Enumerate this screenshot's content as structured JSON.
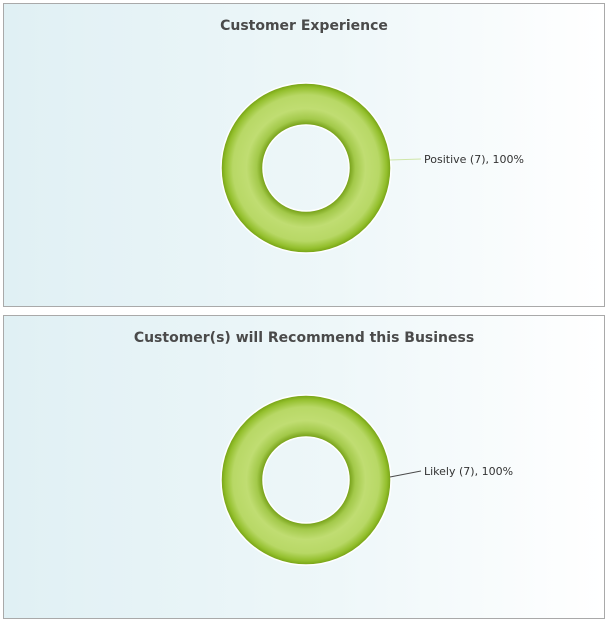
{
  "chart_data": [
    {
      "type": "pie",
      "title": "Customer Experience",
      "slices": [
        {
          "label": "Positive (7), 100%",
          "category": "Positive",
          "value": 7,
          "percent": 100,
          "color": "#b5d75a"
        }
      ],
      "donut": true
    },
    {
      "type": "pie",
      "title": "Customer(s) will Recommend this Business",
      "slices": [
        {
          "label": "Likely (7), 100%",
          "category": "Likely",
          "value": 7,
          "percent": 100,
          "color": "#b5d75a"
        }
      ],
      "donut": true
    }
  ]
}
